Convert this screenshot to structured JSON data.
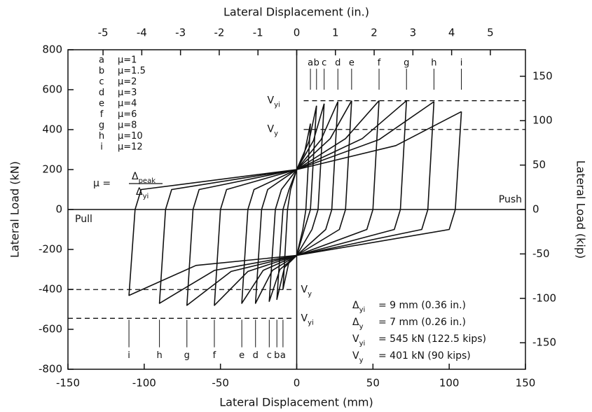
{
  "chart_data": {
    "type": "line",
    "xlabel": "Lateral Displacement (mm)",
    "x2label": "Lateral Displacement (in.)",
    "ylabel": "Lateral Load (kN)",
    "y2label": "Lateral Load (kip)",
    "xlim": [
      -150,
      150
    ],
    "xticks": [
      -150,
      -100,
      -50,
      0,
      50,
      100,
      150
    ],
    "x2lim": [
      -5.906,
      5.906
    ],
    "x2ticks": [
      -5,
      -4,
      -3,
      -2,
      -1,
      0,
      1,
      2,
      3,
      4,
      5
    ],
    "ylim": [
      -800,
      800
    ],
    "yticks": [
      -800,
      -600,
      -400,
      -200,
      0,
      200,
      400,
      600,
      800
    ],
    "y2lim": [
      -179.85,
      179.85
    ],
    "y2ticks": [
      -150,
      -100,
      -50,
      0,
      50,
      100,
      150
    ],
    "color": "#111111",
    "series": [
      {
        "name": "a",
        "label": "μ=1",
        "x": [
          9,
          6,
          4,
          0,
          -5,
          -9,
          -6,
          -4,
          0,
          5,
          9
        ],
        "values": [
          430,
          0,
          -100,
          -230,
          -260,
          -400,
          0,
          100,
          200,
          280,
          430
        ]
      },
      {
        "name": "b",
        "label": "μ=1.5",
        "x": [
          13,
          9,
          5,
          0,
          -8,
          -13,
          -9,
          -5,
          0,
          8,
          13
        ],
        "values": [
          520,
          0,
          -100,
          -230,
          -290,
          -450,
          0,
          100,
          200,
          340,
          520
        ]
      },
      {
        "name": "c",
        "label": "μ=2",
        "x": [
          18,
          14,
          10,
          0,
          -11,
          -18,
          -14,
          -10,
          0,
          11,
          18
        ],
        "values": [
          530,
          0,
          -100,
          -230,
          -300,
          -460,
          0,
          100,
          200,
          345,
          530
        ]
      },
      {
        "name": "d",
        "label": "μ=3",
        "x": [
          27,
          23,
          19,
          0,
          -16,
          -27,
          -23,
          -19,
          0,
          16,
          27
        ],
        "values": [
          540,
          0,
          -100,
          -230,
          -305,
          -470,
          0,
          100,
          200,
          350,
          540
        ]
      },
      {
        "name": "e",
        "label": "μ=4",
        "x": [
          36,
          32,
          28,
          0,
          -22,
          -36,
          -32,
          -28,
          0,
          22,
          36
        ],
        "values": [
          545,
          0,
          -100,
          -230,
          -305,
          -470,
          0,
          100,
          200,
          355,
          545
        ]
      },
      {
        "name": "f",
        "label": "μ=6",
        "x": [
          54,
          50,
          46,
          0,
          -32,
          -54,
          -50,
          -46,
          0,
          32,
          54
        ],
        "values": [
          545,
          0,
          -100,
          -230,
          -310,
          -480,
          0,
          100,
          200,
          355,
          545
        ]
      },
      {
        "name": "g",
        "label": "μ=8",
        "x": [
          72,
          68,
          64,
          0,
          -43,
          -72,
          -68,
          -64,
          0,
          43,
          72
        ],
        "values": [
          545,
          0,
          -100,
          -230,
          -310,
          -480,
          0,
          100,
          200,
          355,
          545
        ]
      },
      {
        "name": "h",
        "label": "μ=10",
        "x": [
          90,
          86,
          82,
          0,
          -54,
          -90,
          -86,
          -82,
          0,
          54,
          90
        ],
        "values": [
          540,
          0,
          -100,
          -230,
          -305,
          -470,
          0,
          100,
          200,
          350,
          540
        ]
      },
      {
        "name": "i",
        "label": "μ=12",
        "x": [
          108,
          104,
          100,
          0,
          -66,
          -110,
          -106,
          -102,
          0,
          65,
          108
        ],
        "values": [
          490,
          0,
          -100,
          -230,
          -280,
          -430,
          0,
          100,
          200,
          320,
          490
        ]
      }
    ],
    "reference_lines": [
      {
        "symbol": "V",
        "sub": "yi",
        "value": 545
      },
      {
        "symbol": "V",
        "sub": "y",
        "value": 401
      },
      {
        "symbol": "V",
        "sub": "y",
        "value": -401
      },
      {
        "symbol": "V",
        "sub": "yi",
        "value": -545
      }
    ],
    "annotations": {
      "push": "Push",
      "pull": "Pull"
    },
    "formula": {
      "lhs": "μ  =",
      "num": "Δ",
      "num_sub": "peak",
      "den": "Δ",
      "den_sub": "yi"
    },
    "notes": [
      {
        "symbol": "Δ",
        "sub": "yi",
        "text": "=  9 mm (0.36 in.)"
      },
      {
        "symbol": "Δ",
        "sub": "y",
        "text": "=  7 mm (0.26 in.)"
      },
      {
        "symbol": "V",
        "sub": "yi",
        "text": "=  545 kN (122.5 kips)"
      },
      {
        "symbol": "V",
        "sub": "y",
        "text": "=  401 kN (90 kips)"
      }
    ]
  }
}
